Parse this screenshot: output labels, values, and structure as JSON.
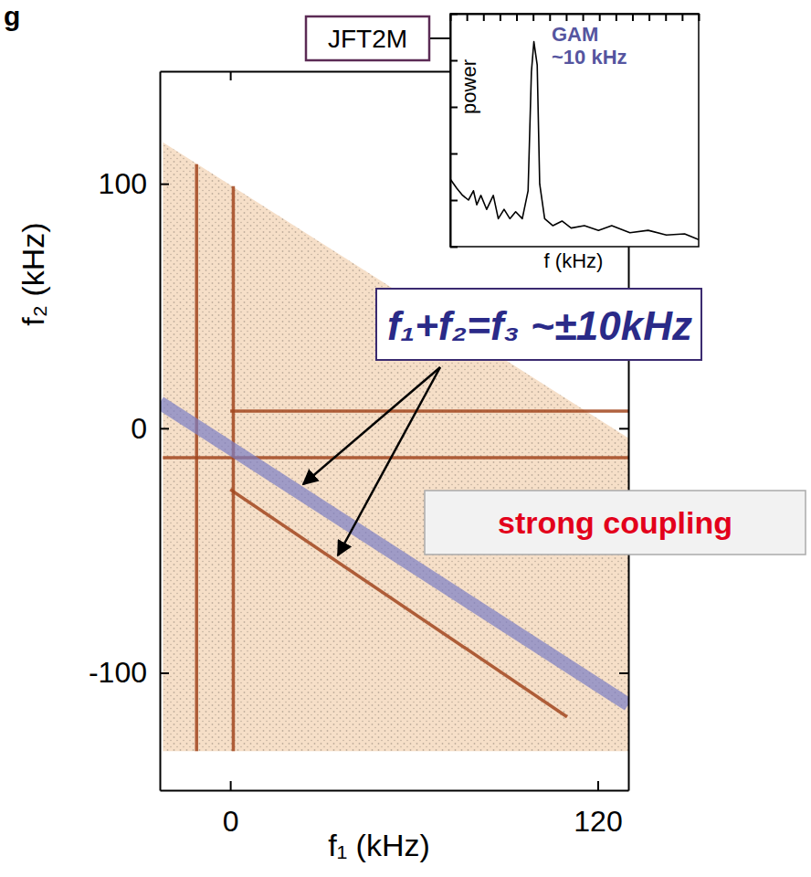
{
  "chart_data": [
    {
      "type": "line",
      "x_label": "f₁ (kHz)",
      "y_label": "f₂ (kHz)",
      "xlim": [
        -23,
        130
      ],
      "ylim": [
        -148,
        146
      ],
      "xticks": [
        0,
        120
      ],
      "yticks": [
        -100,
        0,
        100
      ],
      "grid": false,
      "annotations": [
        {
          "text": "g"
        },
        {
          "text": "JFT2M"
        },
        {
          "text": "f₁+f₂=f₃ ~±10kHz"
        },
        {
          "text": "strong coupling"
        }
      ],
      "series": [
        {
          "type": "area",
          "color": "#f6dfc8",
          "x": [
            -22,
            130,
            130,
            -22
          ],
          "values": [
            117,
            -4,
            -132,
            -132
          ]
        },
        {
          "type": "line",
          "color": "#a2471f",
          "line_style": "solid",
          "x": [
            -11,
            -11
          ],
          "values": [
            108,
            -132
          ]
        },
        {
          "type": "line",
          "color": "#a2471f",
          "line_style": "solid",
          "x": [
            1,
            1
          ],
          "values": [
            99,
            -132
          ]
        },
        {
          "type": "line",
          "color": "#a2471f",
          "line_style": "solid",
          "x": [
            -22,
            130
          ],
          "values": [
            -12,
            -12
          ]
        },
        {
          "type": "line",
          "color": "#a2471f",
          "line_style": "solid",
          "x": [
            0,
            130
          ],
          "values": [
            7,
            7
          ]
        },
        {
          "type": "line",
          "color": "#a2471f",
          "line_style": "solid",
          "x": [
            0,
            110
          ],
          "values": [
            -25,
            -118
          ]
        },
        {
          "type": "line",
          "color": "#7b7ec4",
          "line_style": "band",
          "x": [
            -23,
            130
          ],
          "values": [
            10.5,
            -113
          ]
        }
      ]
    },
    {
      "type": "line",
      "x_label": "f (kHz)",
      "y_label": "power",
      "xlim": [
        0,
        30
      ],
      "ylim": [
        0,
        10
      ],
      "xticks": [
        0,
        2,
        4,
        6,
        8,
        10,
        12,
        14,
        16,
        18,
        20,
        22,
        24,
        26,
        28,
        30
      ],
      "yticks": [
        0,
        2,
        4,
        6,
        8,
        10
      ],
      "tick_labels": false,
      "grid": false,
      "annotations": [
        {
          "text": "GAM"
        },
        {
          "text": "~10 kHz"
        }
      ],
      "series": [
        {
          "color": "#000000",
          "line_style": "solid",
          "x": [
            0,
            0.8,
            1.5,
            2.2,
            2.8,
            3.2,
            3.7,
            4.4,
            5.2,
            5.8,
            6.5,
            7.2,
            7.9,
            8.7,
            9.4,
            9.8,
            10.1,
            10.5,
            10.8,
            11.4,
            12.4,
            13.5,
            14.6,
            16.2,
            17.9,
            19.5,
            21.7,
            23.9,
            26.1,
            28.3,
            30
          ],
          "values": [
            2.9,
            2.5,
            2.2,
            2.0,
            2.4,
            1.8,
            2.2,
            1.6,
            2.2,
            1.2,
            1.6,
            1.2,
            1.5,
            1.2,
            2.4,
            7.5,
            8.8,
            7.8,
            2.7,
            1.2,
            0.9,
            1.1,
            0.8,
            0.9,
            0.7,
            0.9,
            0.6,
            0.7,
            0.5,
            0.55,
            0.3
          ]
        }
      ]
    }
  ]
}
